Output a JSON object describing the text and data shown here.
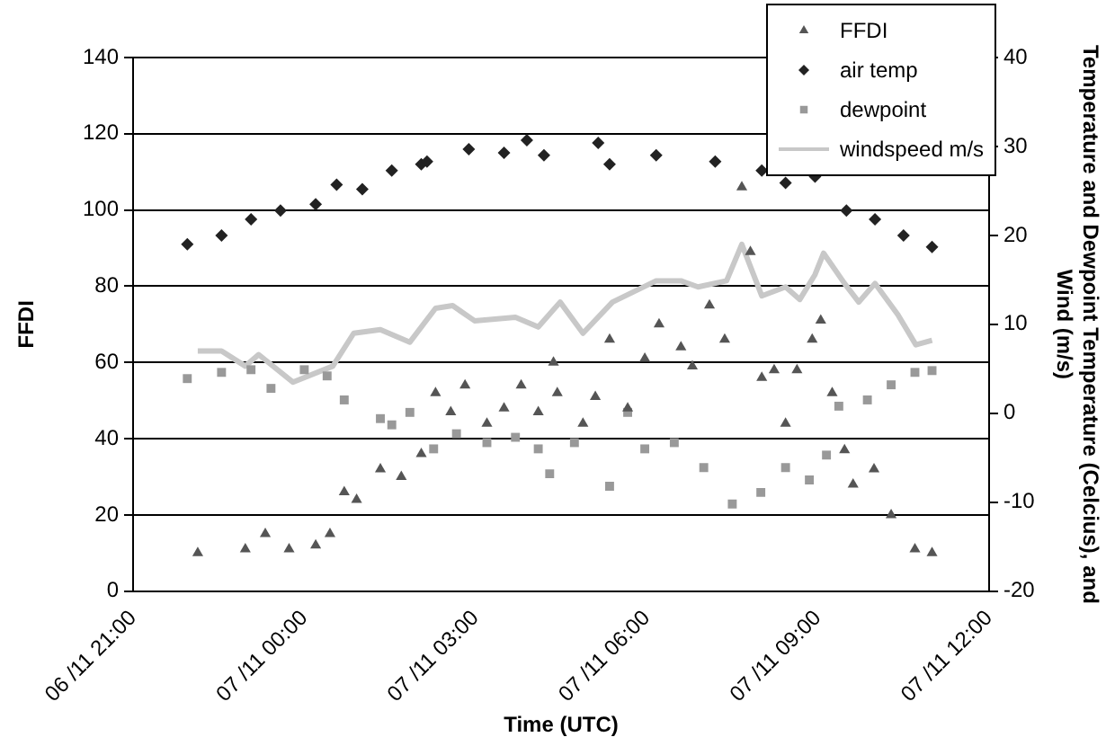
{
  "chart_data": {
    "type": "scatter",
    "xlabel": "Time (UTC)",
    "ylabel": "FFDI",
    "y2label": "Temperature and Dewpoint Temperature (Celcius), and Wind (m/s)",
    "xlim": [
      "--11-06T21:00",
      "--11-07T12:00"
    ],
    "xticks": [
      {
        "value": "--11-06T21:00",
        "label": "06 /11 21:00"
      },
      {
        "value": "--11-07T00:00",
        "label": "07 /11 00:00"
      },
      {
        "value": "--11-07T03:00",
        "label": "07 /11 03:00"
      },
      {
        "value": "--11-07T06:00",
        "label": "07 /11 06:00"
      },
      {
        "value": "--11-07T09:00",
        "label": "07 /11 09:00"
      },
      {
        "value": "--11-07T12:00",
        "label": "07 /11 12:00"
      }
    ],
    "ylim": [
      0,
      140
    ],
    "yticks": [
      0,
      20,
      40,
      60,
      80,
      100,
      120,
      140
    ],
    "y2lim": [
      -20,
      40
    ],
    "y2ticks": [
      -20,
      -10,
      0,
      10,
      20,
      30,
      40
    ],
    "grid": "y",
    "legend": "top right",
    "series": [
      {
        "name": "FFDI",
        "type": "scatter",
        "marker": "triangle",
        "color": "#555555",
        "x": [
          "--11-06T22:08",
          "--11-06T22:58",
          "--11-06T23:19",
          "--11-06T23:44",
          "--11-07T00:12",
          "--11-07T00:27",
          "--11-07T00:42",
          "--11-07T00:55",
          "--11-07T01:20",
          "--11-07T01:42",
          "--11-07T02:03",
          "--11-07T02:18",
          "--11-07T02:34",
          "--11-07T02:49",
          "--11-07T03:12",
          "--11-07T03:30",
          "--11-07T03:48",
          "--11-07T04:06",
          "--11-07T04:22",
          "--11-07T04:26",
          "--11-07T04:53",
          "--11-07T05:06",
          "--11-07T05:21",
          "--11-07T05:40",
          "--11-07T05:58",
          "--11-07T06:13",
          "--11-07T06:36",
          "--11-07T06:48",
          "--11-07T07:06",
          "--11-07T07:22",
          "--11-07T07:40",
          "--11-07T07:49",
          "--11-07T08:01",
          "--11-07T08:14",
          "--11-07T08:26",
          "--11-07T08:38",
          "--11-07T08:54",
          "--11-07T09:03",
          "--11-07T09:15",
          "--11-07T09:28",
          "--11-07T09:37",
          "--11-07T09:59",
          "--11-07T10:17",
          "--11-07T10:42",
          "--11-07T11:00"
        ],
        "values": [
          10,
          11,
          15,
          11,
          12,
          15,
          26,
          24,
          32,
          30,
          36,
          52,
          47,
          54,
          44,
          48,
          54,
          47,
          60,
          52,
          44,
          51,
          66,
          48,
          61,
          70,
          64,
          59,
          75,
          66,
          106,
          89,
          56,
          58,
          44,
          58,
          66,
          71,
          52,
          37,
          28,
          32,
          20,
          11,
          10
        ]
      },
      {
        "name": "air temp",
        "type": "scatter",
        "marker": "diamond",
        "color": "#222222",
        "axis": "y2",
        "x": [
          "--11-06T21:57",
          "--11-06T22:33",
          "--11-06T23:04",
          "--11-06T23:35",
          "--11-07T00:12",
          "--11-07T00:34",
          "--11-07T01:01",
          "--11-07T01:32",
          "--11-07T02:03",
          "--11-07T02:09",
          "--11-07T02:53",
          "--11-07T03:30",
          "--11-07T03:54",
          "--11-07T04:12",
          "--11-07T05:09",
          "--11-07T05:21",
          "--11-07T06:10",
          "--11-07T07:12",
          "--11-07T08:01",
          "--11-07T08:26",
          "--11-07T08:57",
          "--11-07T09:30",
          "--11-07T10:00",
          "--11-07T10:30",
          "--11-07T11:00"
        ],
        "values": [
          19.0,
          20.0,
          21.8,
          22.8,
          23.5,
          25.7,
          25.2,
          27.3,
          28.0,
          28.3,
          29.7,
          29.3,
          30.7,
          29.0,
          30.4,
          28.0,
          29.0,
          28.3,
          27.3,
          25.9,
          26.6,
          22.8,
          21.8,
          20.0,
          18.7
        ]
      },
      {
        "name": "dewpoint",
        "type": "scatter",
        "marker": "square",
        "color": "#999999",
        "axis": "y2",
        "x": [
          "--11-06T21:57",
          "--11-06T22:33",
          "--11-06T23:04",
          "--11-06T23:25",
          "--11-07T00:00",
          "--11-07T00:24",
          "--11-07T00:42",
          "--11-07T01:20",
          "--11-07T01:32",
          "--11-07T01:51",
          "--11-07T02:16",
          "--11-07T02:40",
          "--11-07T03:12",
          "--11-07T03:42",
          "--11-07T04:06",
          "--11-07T04:18",
          "--11-07T04:44",
          "--11-07T05:21",
          "--11-07T05:40",
          "--11-07T05:58",
          "--11-07T06:29",
          "--11-07T07:00",
          "--11-07T07:30",
          "--11-07T08:00",
          "--11-07T08:26",
          "--11-07T08:51",
          "--11-07T09:09",
          "--11-07T09:22",
          "--11-07T09:52",
          "--11-07T10:17",
          "--11-07T10:42",
          "--11-07T11:00"
        ],
        "values": [
          3.9,
          4.6,
          4.9,
          2.8,
          4.9,
          4.2,
          1.5,
          -0.6,
          -1.3,
          0.1,
          -4.0,
          -2.3,
          -3.3,
          -2.7,
          -4.0,
          -6.8,
          -3.3,
          -8.2,
          0.1,
          -4.0,
          -3.3,
          -6.1,
          -10.2,
          -8.9,
          -6.1,
          -7.5,
          -4.7,
          0.8,
          1.5,
          3.2,
          4.6,
          4.8
        ]
      },
      {
        "name": "windspeed m/s",
        "type": "line",
        "marker": "none",
        "color": "#c8c8c8",
        "axis": "y2",
        "x": [
          "--11-06T22:08",
          "--11-06T22:33",
          "--11-06T22:58",
          "--11-06T23:12",
          "--11-06T23:48",
          "--11-07T00:30",
          "--11-07T00:52",
          "--11-07T01:20",
          "--11-07T01:51",
          "--11-07T02:18",
          "--11-07T02:36",
          "--11-07T02:59",
          "--11-07T03:42",
          "--11-07T04:06",
          "--11-07T04:29",
          "--11-07T04:53",
          "--11-07T05:24",
          "--11-07T06:10",
          "--11-07T06:36",
          "--11-07T06:54",
          "--11-07T07:24",
          "--11-07T07:40",
          "--11-07T08:01",
          "--11-07T08:26",
          "--11-07T08:41",
          "--11-07T08:57",
          "--11-07T09:06",
          "--11-07T09:28",
          "--11-07T09:43",
          "--11-07T10:00",
          "--11-07T10:24",
          "--11-07T10:43",
          "--11-07T11:00"
        ],
        "values": [
          7.0,
          7.0,
          5.3,
          6.6,
          3.5,
          5.3,
          9.0,
          9.4,
          8.0,
          11.8,
          12.1,
          10.4,
          10.8,
          9.7,
          12.5,
          9.0,
          12.5,
          14.9,
          14.9,
          14.2,
          14.9,
          19.0,
          13.2,
          14.2,
          12.8,
          15.6,
          18.0,
          14.6,
          12.5,
          14.6,
          11.1,
          7.7,
          8.2
        ]
      }
    ]
  }
}
